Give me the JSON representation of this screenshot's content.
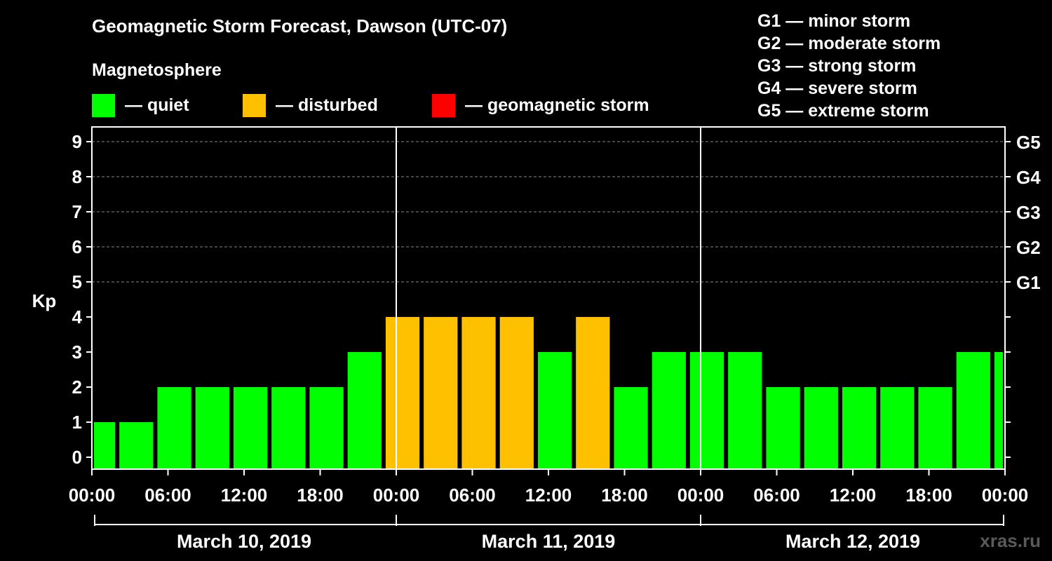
{
  "header": {
    "title": "Geomagnetic Storm Forecast, Dawson (UTC-07)",
    "subtitle": "Magnetosphere"
  },
  "legend": [
    {
      "label": "— quiet",
      "color": "#00ff00"
    },
    {
      "label": "— disturbed",
      "color": "#ffc000"
    },
    {
      "label": "— geomagnetic storm",
      "color": "#ff0000"
    }
  ],
  "storm_scale": [
    "G1 — minor storm",
    "G2 — moderate storm",
    "G3 — strong storm",
    "G4 — severe storm",
    "G5 — extreme storm"
  ],
  "watermark": "xras.ru",
  "chart_data": {
    "type": "bar",
    "ylabel": "Kp",
    "ylim": [
      0,
      9
    ],
    "yticks": [
      "0",
      "1",
      "2",
      "3",
      "4",
      "5",
      "6",
      "7",
      "8",
      "9"
    ],
    "right_axis_labels": [
      {
        "kp": 5,
        "label": "G1"
      },
      {
        "kp": 6,
        "label": "G2"
      },
      {
        "kp": 7,
        "label": "G3"
      },
      {
        "kp": 8,
        "label": "G4"
      },
      {
        "kp": 9,
        "label": "G5"
      }
    ],
    "xticks": [
      "00:00",
      "06:00",
      "12:00",
      "18:00",
      "00:00",
      "06:00",
      "12:00",
      "18:00",
      "00:00",
      "06:00",
      "12:00",
      "18:00",
      "00:00"
    ],
    "days": [
      "March 10, 2019",
      "March 11, 2019",
      "March 12, 2019"
    ],
    "x_range_hours": [
      0,
      72
    ],
    "bars": [
      {
        "start_hour": 0,
        "end_hour": 2,
        "kp": 1,
        "level": "quiet"
      },
      {
        "start_hour": 2,
        "end_hour": 5,
        "kp": 1,
        "level": "quiet"
      },
      {
        "start_hour": 5,
        "end_hour": 8,
        "kp": 2,
        "level": "quiet"
      },
      {
        "start_hour": 8,
        "end_hour": 11,
        "kp": 2,
        "level": "quiet"
      },
      {
        "start_hour": 11,
        "end_hour": 14,
        "kp": 2,
        "level": "quiet"
      },
      {
        "start_hour": 14,
        "end_hour": 17,
        "kp": 2,
        "level": "quiet"
      },
      {
        "start_hour": 17,
        "end_hour": 20,
        "kp": 2,
        "level": "quiet"
      },
      {
        "start_hour": 20,
        "end_hour": 23,
        "kp": 3,
        "level": "quiet"
      },
      {
        "start_hour": 23,
        "end_hour": 26,
        "kp": 4,
        "level": "disturbed"
      },
      {
        "start_hour": 26,
        "end_hour": 29,
        "kp": 4,
        "level": "disturbed"
      },
      {
        "start_hour": 29,
        "end_hour": 32,
        "kp": 4,
        "level": "disturbed"
      },
      {
        "start_hour": 32,
        "end_hour": 35,
        "kp": 4,
        "level": "disturbed"
      },
      {
        "start_hour": 35,
        "end_hour": 38,
        "kp": 3,
        "level": "quiet"
      },
      {
        "start_hour": 38,
        "end_hour": 41,
        "kp": 4,
        "level": "disturbed"
      },
      {
        "start_hour": 41,
        "end_hour": 44,
        "kp": 2,
        "level": "quiet"
      },
      {
        "start_hour": 44,
        "end_hour": 47,
        "kp": 3,
        "level": "quiet"
      },
      {
        "start_hour": 47,
        "end_hour": 50,
        "kp": 3,
        "level": "quiet"
      },
      {
        "start_hour": 50,
        "end_hour": 53,
        "kp": 3,
        "level": "quiet"
      },
      {
        "start_hour": 53,
        "end_hour": 56,
        "kp": 2,
        "level": "quiet"
      },
      {
        "start_hour": 56,
        "end_hour": 59,
        "kp": 2,
        "level": "quiet"
      },
      {
        "start_hour": 59,
        "end_hour": 62,
        "kp": 2,
        "level": "quiet"
      },
      {
        "start_hour": 62,
        "end_hour": 65,
        "kp": 2,
        "level": "quiet"
      },
      {
        "start_hour": 65,
        "end_hour": 68,
        "kp": 2,
        "level": "quiet"
      },
      {
        "start_hour": 68,
        "end_hour": 71,
        "kp": 3,
        "level": "quiet"
      },
      {
        "start_hour": 71,
        "end_hour": 72,
        "kp": 3,
        "level": "quiet"
      }
    ]
  }
}
